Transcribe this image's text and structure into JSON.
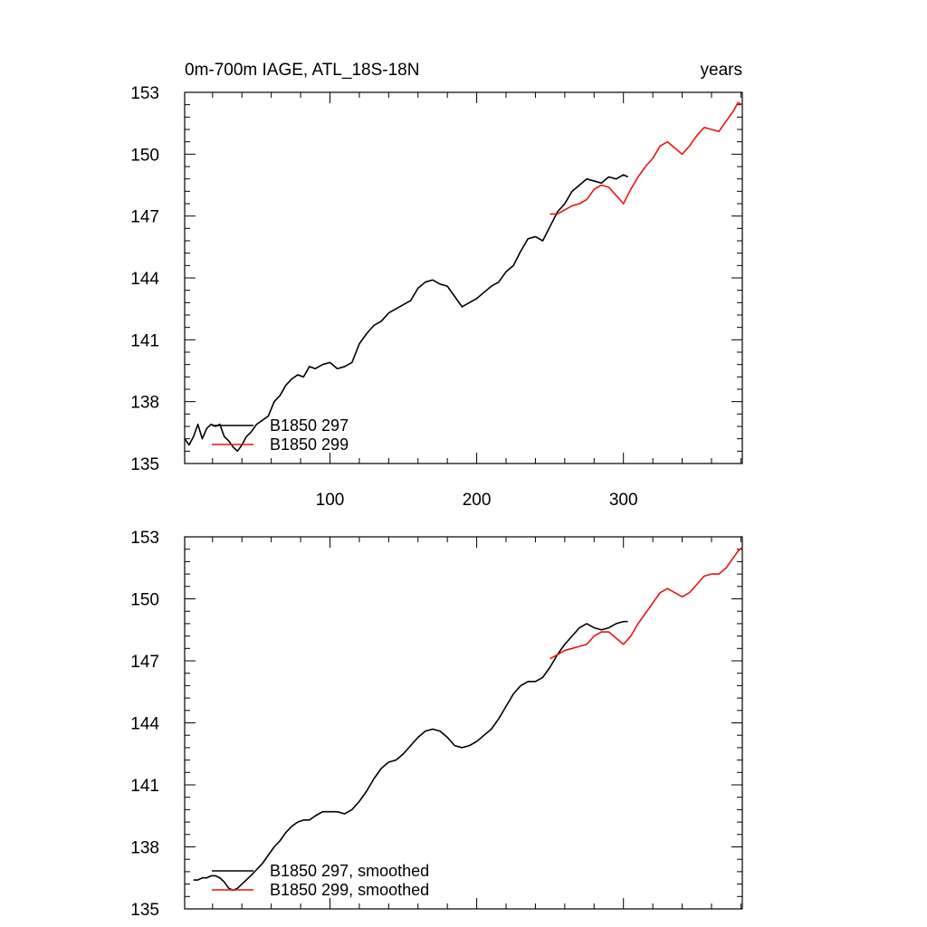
{
  "colors": {
    "series_297": "#000000",
    "series_299": "#e8130f",
    "axis": "#000000",
    "background": "#ffffff"
  },
  "chart_data": [
    {
      "type": "line",
      "title": "0m-700m IAGE, ATL_18S-18N",
      "units_label": "years",
      "xlim": [
        1,
        381
      ],
      "ylim": [
        135,
        153
      ],
      "yticks": [
        135,
        138,
        141,
        144,
        147,
        150,
        153
      ],
      "xticks": [
        100,
        200,
        300
      ],
      "xticks_labeled": true,
      "grid": false,
      "legend_position": "bottom-left",
      "series": [
        {
          "name": "B1850 297",
          "color": "#000000",
          "points": [
            [
              1,
              136.2
            ],
            [
              4,
              135.9
            ],
            [
              7,
              136.3
            ],
            [
              10,
              136.9
            ],
            [
              13,
              136.2
            ],
            [
              16,
              136.7
            ],
            [
              19,
              136.9
            ],
            [
              22,
              136.8
            ],
            [
              25,
              136.9
            ],
            [
              28,
              136.3
            ],
            [
              31,
              136.1
            ],
            [
              34,
              135.8
            ],
            [
              37,
              135.6
            ],
            [
              40,
              135.9
            ],
            [
              43,
              136.3
            ],
            [
              46,
              136.5
            ],
            [
              50,
              136.9
            ],
            [
              54,
              137.1
            ],
            [
              58,
              137.3
            ],
            [
              62,
              138.0
            ],
            [
              66,
              138.3
            ],
            [
              70,
              138.8
            ],
            [
              74,
              139.1
            ],
            [
              78,
              139.3
            ],
            [
              82,
              139.2
            ],
            [
              86,
              139.7
            ],
            [
              90,
              139.6
            ],
            [
              95,
              139.8
            ],
            [
              100,
              139.9
            ],
            [
              105,
              139.6
            ],
            [
              110,
              139.7
            ],
            [
              115,
              139.9
            ],
            [
              120,
              140.8
            ],
            [
              125,
              141.3
            ],
            [
              130,
              141.7
            ],
            [
              135,
              141.9
            ],
            [
              140,
              142.3
            ],
            [
              145,
              142.5
            ],
            [
              150,
              142.7
            ],
            [
              155,
              142.9
            ],
            [
              160,
              143.5
            ],
            [
              165,
              143.8
            ],
            [
              170,
              143.9
            ],
            [
              175,
              143.7
            ],
            [
              180,
              143.6
            ],
            [
              185,
              143.1
            ],
            [
              190,
              142.6
            ],
            [
              195,
              142.8
            ],
            [
              200,
              143.0
            ],
            [
              205,
              143.3
            ],
            [
              210,
              143.6
            ],
            [
              215,
              143.8
            ],
            [
              220,
              144.3
            ],
            [
              225,
              144.6
            ],
            [
              230,
              145.3
            ],
            [
              235,
              145.9
            ],
            [
              240,
              146.0
            ],
            [
              245,
              145.8
            ],
            [
              250,
              146.5
            ],
            [
              255,
              147.2
            ],
            [
              260,
              147.6
            ],
            [
              265,
              148.2
            ],
            [
              270,
              148.5
            ],
            [
              275,
              148.8
            ],
            [
              280,
              148.7
            ],
            [
              285,
              148.6
            ],
            [
              290,
              148.9
            ],
            [
              295,
              148.8
            ],
            [
              300,
              149.0
            ],
            [
              303,
              148.9
            ]
          ]
        },
        {
          "name": "B1850 299",
          "color": "#e8130f",
          "points": [
            [
              250,
              147.1
            ],
            [
              255,
              147.1
            ],
            [
              260,
              147.3
            ],
            [
              265,
              147.5
            ],
            [
              270,
              147.6
            ],
            [
              275,
              147.8
            ],
            [
              280,
              148.3
            ],
            [
              285,
              148.5
            ],
            [
              290,
              148.4
            ],
            [
              295,
              148.0
            ],
            [
              300,
              147.6
            ],
            [
              305,
              148.3
            ],
            [
              310,
              148.9
            ],
            [
              315,
              149.4
            ],
            [
              320,
              149.8
            ],
            [
              325,
              150.4
            ],
            [
              330,
              150.6
            ],
            [
              335,
              150.3
            ],
            [
              340,
              150.0
            ],
            [
              345,
              150.4
            ],
            [
              350,
              150.9
            ],
            [
              355,
              151.3
            ],
            [
              360,
              151.2
            ],
            [
              365,
              151.1
            ],
            [
              370,
              151.6
            ],
            [
              375,
              152.1
            ],
            [
              378,
              152.5
            ],
            [
              381,
              152.4
            ]
          ]
        }
      ]
    },
    {
      "type": "line",
      "xlim": [
        1,
        381
      ],
      "ylim": [
        135,
        153
      ],
      "yticks": [
        135,
        138,
        141,
        144,
        147,
        150,
        153
      ],
      "xticks": [
        100,
        200,
        300
      ],
      "xticks_labeled": false,
      "grid": false,
      "legend_position": "bottom-left",
      "series": [
        {
          "name": "B1850 297, smoothed",
          "color": "#000000",
          "points": [
            [
              7,
              136.4
            ],
            [
              10,
              136.4
            ],
            [
              13,
              136.5
            ],
            [
              16,
              136.5
            ],
            [
              19,
              136.6
            ],
            [
              22,
              136.6
            ],
            [
              25,
              136.5
            ],
            [
              28,
              136.3
            ],
            [
              31,
              136.0
            ],
            [
              34,
              135.9
            ],
            [
              37,
              136.0
            ],
            [
              40,
              136.2
            ],
            [
              43,
              136.4
            ],
            [
              46,
              136.6
            ],
            [
              50,
              136.9
            ],
            [
              54,
              137.2
            ],
            [
              58,
              137.6
            ],
            [
              62,
              138.0
            ],
            [
              66,
              138.3
            ],
            [
              70,
              138.7
            ],
            [
              74,
              139.0
            ],
            [
              78,
              139.2
            ],
            [
              82,
              139.3
            ],
            [
              86,
              139.3
            ],
            [
              90,
              139.5
            ],
            [
              95,
              139.7
            ],
            [
              100,
              139.7
            ],
            [
              105,
              139.7
            ],
            [
              110,
              139.6
            ],
            [
              115,
              139.8
            ],
            [
              120,
              140.2
            ],
            [
              125,
              140.7
            ],
            [
              130,
              141.3
            ],
            [
              135,
              141.8
            ],
            [
              140,
              142.1
            ],
            [
              145,
              142.2
            ],
            [
              150,
              142.5
            ],
            [
              155,
              142.9
            ],
            [
              160,
              143.3
            ],
            [
              165,
              143.6
            ],
            [
              170,
              143.7
            ],
            [
              175,
              143.6
            ],
            [
              180,
              143.3
            ],
            [
              185,
              142.9
            ],
            [
              190,
              142.8
            ],
            [
              195,
              142.9
            ],
            [
              200,
              143.1
            ],
            [
              205,
              143.4
            ],
            [
              210,
              143.7
            ],
            [
              215,
              144.2
            ],
            [
              220,
              144.8
            ],
            [
              225,
              145.4
            ],
            [
              230,
              145.8
            ],
            [
              235,
              146.0
            ],
            [
              240,
              146.0
            ],
            [
              245,
              146.2
            ],
            [
              250,
              146.7
            ],
            [
              255,
              147.3
            ],
            [
              260,
              147.8
            ],
            [
              265,
              148.2
            ],
            [
              270,
              148.6
            ],
            [
              275,
              148.8
            ],
            [
              280,
              148.6
            ],
            [
              285,
              148.5
            ],
            [
              290,
              148.6
            ],
            [
              295,
              148.8
            ],
            [
              300,
              148.9
            ],
            [
              303,
              148.9
            ]
          ]
        },
        {
          "name": "B1850 299, smoothed",
          "color": "#e8130f",
          "points": [
            [
              250,
              147.1
            ],
            [
              255,
              147.3
            ],
            [
              260,
              147.5
            ],
            [
              265,
              147.6
            ],
            [
              270,
              147.7
            ],
            [
              275,
              147.8
            ],
            [
              280,
              148.2
            ],
            [
              285,
              148.4
            ],
            [
              290,
              148.4
            ],
            [
              295,
              148.1
            ],
            [
              300,
              147.8
            ],
            [
              305,
              148.2
            ],
            [
              310,
              148.8
            ],
            [
              315,
              149.3
            ],
            [
              320,
              149.8
            ],
            [
              325,
              150.3
            ],
            [
              330,
              150.5
            ],
            [
              335,
              150.3
            ],
            [
              340,
              150.1
            ],
            [
              345,
              150.3
            ],
            [
              350,
              150.7
            ],
            [
              355,
              151.1
            ],
            [
              360,
              151.2
            ],
            [
              365,
              151.2
            ],
            [
              370,
              151.5
            ],
            [
              375,
              152.0
            ],
            [
              378,
              152.3
            ],
            [
              381,
              152.5
            ]
          ]
        }
      ]
    }
  ]
}
